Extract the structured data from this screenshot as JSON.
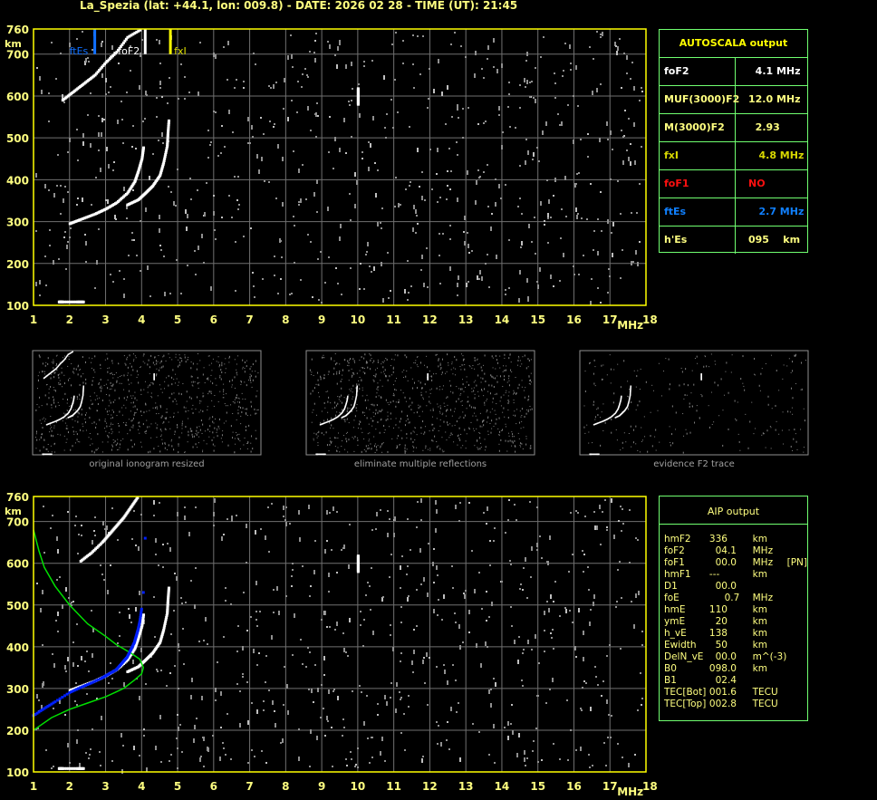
{
  "header": {
    "title": "La_Spezia (lat: +44.1, lon: 009.8) - DATE: 2026 02 28 - TIME (UT): 21:45"
  },
  "colors": {
    "axis": "#ffff00",
    "grid": "#707070",
    "panel_border": "#70ff70",
    "trace": "#ffffff",
    "noise": "#909090",
    "ftEs": "#1070ff",
    "fxI": "#ffff00",
    "profile": "#00e000",
    "aip_points": "#0020ff",
    "foF1": "#ff0000"
  },
  "autoscala": {
    "title": "AUTOSCALA output",
    "rows": [
      {
        "label": "foF2",
        "value": "  4.1 MHz",
        "color": "#ffffff"
      },
      {
        "label": "MUF(3000)F2",
        "value": "12.0 MHz",
        "color": "#ffff80"
      },
      {
        "label": "M(3000)F2",
        "value": "  2.93",
        "color": "#ffff80"
      },
      {
        "label": "fxI",
        "value": "   4.8 MHz",
        "color": "#d8d800"
      },
      {
        "label": "foF1",
        "value": "NO",
        "color": "#ff1010"
      },
      {
        "label": "ftEs",
        "value": "   2.7 MHz",
        "color": "#1080ff"
      },
      {
        "label": "h'Es",
        "value": "095    km",
        "color": "#ffff80"
      }
    ]
  },
  "aip": {
    "title": "AIP output",
    "rows": [
      {
        "name": "hmF2",
        "value": "336",
        "unit": "km",
        "extra": ""
      },
      {
        "name": "foF2",
        "value": "  04.1",
        "unit": "MHz",
        "extra": ""
      },
      {
        "name": "foF1",
        "value": "  00.0",
        "unit": "MHz",
        "extra": "[PN]"
      },
      {
        "name": "hmF1",
        "value": "---",
        "unit": "km",
        "extra": ""
      },
      {
        "name": "D1",
        "value": "  00.0",
        "unit": "",
        "extra": ""
      },
      {
        "name": "foE",
        "value": "     0.7",
        "unit": "MHz",
        "extra": ""
      },
      {
        "name": "hmE",
        "value": "110",
        "unit": "km",
        "extra": ""
      },
      {
        "name": "ymE",
        "value": "  20",
        "unit": "km",
        "extra": ""
      },
      {
        "name": "h_vE",
        "value": "138",
        "unit": "km",
        "extra": ""
      },
      {
        "name": "Ewidth",
        "value": "  50",
        "unit": "km",
        "extra": ""
      },
      {
        "name": "DelN_vE",
        "value": "  00.0",
        "unit": "m^(-3)",
        "extra": ""
      },
      {
        "name": "B0",
        "value": "098.0",
        "unit": "km",
        "extra": ""
      },
      {
        "name": "B1",
        "value": "  02.4",
        "unit": "",
        "extra": ""
      },
      {
        "name": "TEC[Bot]",
        "value": "001.6",
        "unit": "TECU",
        "extra": ""
      },
      {
        "name": "TEC[Top]",
        "value": "002.8",
        "unit": "TECU",
        "extra": ""
      }
    ]
  },
  "thumbnails": [
    {
      "caption": "original ionogram resized"
    },
    {
      "caption": "eliminate multiple reflections"
    },
    {
      "caption": "evidence F2 trace"
    }
  ],
  "chart_data": [
    {
      "type": "scatter",
      "title": "",
      "xlabel": "MHz",
      "ylabel": "km",
      "xlim": [
        1,
        18
      ],
      "ylim": [
        100,
        760
      ],
      "xticks": [
        "1",
        "2",
        "3",
        "4",
        "5",
        "6",
        "7",
        "8",
        "9",
        "10",
        "11",
        "12",
        "13",
        "14",
        "15",
        "16",
        "17",
        "18"
      ],
      "yticks": [
        "760",
        "700",
        "600",
        "500",
        "400",
        "300",
        "200",
        "100"
      ],
      "grid": true,
      "markers": [
        {
          "name": "ftEs",
          "x": 2.7,
          "color": "#1070ff"
        },
        {
          "name": "foF2",
          "x": 4.1,
          "color": "#ffffff"
        },
        {
          "name": "fxI",
          "x": 4.8,
          "color": "#ffff00"
        }
      ],
      "traces": [
        {
          "x": [
            2.0,
            2.3,
            2.7,
            3.0,
            3.3,
            3.6,
            3.8,
            3.9,
            4.0,
            4.05
          ],
          "y": [
            295,
            305,
            318,
            330,
            345,
            368,
            395,
            420,
            450,
            480
          ]
        },
        {
          "x": [
            3.6,
            3.9,
            4.1,
            4.3,
            4.5,
            4.6,
            4.7,
            4.72,
            4.75
          ],
          "y": [
            340,
            352,
            368,
            385,
            410,
            440,
            480,
            510,
            545
          ]
        },
        {
          "x": [
            1.8,
            2.1,
            2.4,
            2.7,
            3.0,
            3.3,
            3.6,
            4.0
          ],
          "y": [
            590,
            610,
            630,
            650,
            680,
            705,
            740,
            760
          ]
        },
        {
          "x": [
            10,
            10,
            10
          ],
          "y": [
            580,
            600,
            620
          ]
        },
        {
          "x": [
            1.7,
            1.8,
            2.2,
            2.4
          ],
          "y": [
            108,
            108,
            108,
            108
          ]
        }
      ]
    },
    {
      "type": "scatter",
      "title": "",
      "xlabel": "MHz",
      "ylabel": "km",
      "xlim": [
        1,
        18
      ],
      "ylim": [
        100,
        760
      ],
      "xticks": [
        "1",
        "2",
        "3",
        "4",
        "5",
        "6",
        "7",
        "8",
        "9",
        "10",
        "11",
        "12",
        "13",
        "14",
        "15",
        "16",
        "17",
        "18"
      ],
      "yticks": [
        "760",
        "700",
        "600",
        "500",
        "400",
        "300",
        "200",
        "100"
      ],
      "grid": true,
      "traces": [
        {
          "x": [
            2.0,
            2.3,
            2.7,
            3.0,
            3.3,
            3.6,
            3.8,
            3.9,
            4.0,
            4.05
          ],
          "y": [
            295,
            305,
            318,
            330,
            345,
            368,
            395,
            420,
            450,
            480
          ]
        },
        {
          "x": [
            3.6,
            3.9,
            4.1,
            4.3,
            4.5,
            4.6,
            4.7,
            4.72,
            4.75
          ],
          "y": [
            340,
            352,
            368,
            385,
            410,
            440,
            480,
            510,
            545
          ]
        },
        {
          "x": [
            2.3,
            2.6,
            2.9,
            3.1,
            3.3,
            3.5,
            3.7,
            3.9
          ],
          "y": [
            605,
            625,
            650,
            670,
            690,
            710,
            735,
            760
          ]
        },
        {
          "x": [
            10,
            10,
            10
          ],
          "y": [
            580,
            600,
            620
          ]
        },
        {
          "x": [
            1.7,
            1.8,
            2.2,
            2.4
          ],
          "y": [
            108,
            108,
            108,
            108
          ]
        }
      ],
      "profile": {
        "x": [
          1.0,
          1.5,
          2.0,
          2.5,
          3.0,
          3.5,
          3.8,
          4.0,
          4.05,
          3.95,
          3.7,
          3.3,
          3.0,
          2.5,
          2.0,
          1.6,
          1.3,
          1.15,
          1.0
        ],
        "y": [
          200,
          230,
          250,
          265,
          280,
          300,
          320,
          335,
          350,
          370,
          385,
          405,
          425,
          455,
          500,
          545,
          590,
          630,
          680
        ]
      },
      "aip_points": {
        "x": [
          1.0,
          1.3,
          1.6,
          2.0,
          2.3,
          2.6,
          2.9,
          3.1,
          3.3,
          3.45,
          3.6,
          3.7,
          3.8,
          3.85,
          3.9,
          3.95,
          4.0,
          4.05,
          4.1
        ],
        "y": [
          235,
          252,
          268,
          290,
          302,
          313,
          325,
          335,
          345,
          360,
          375,
          392,
          410,
          425,
          440,
          460,
          490,
          530,
          660
        ]
      }
    }
  ]
}
